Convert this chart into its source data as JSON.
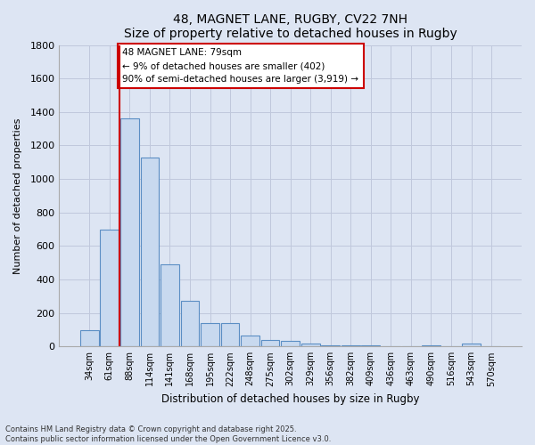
{
  "title1": "48, MAGNET LANE, RUGBY, CV22 7NH",
  "title2": "Size of property relative to detached houses in Rugby",
  "xlabel": "Distribution of detached houses by size in Rugby",
  "ylabel": "Number of detached properties",
  "categories": [
    "34sqm",
    "61sqm",
    "88sqm",
    "114sqm",
    "141sqm",
    "168sqm",
    "195sqm",
    "222sqm",
    "248sqm",
    "275sqm",
    "302sqm",
    "329sqm",
    "356sqm",
    "382sqm",
    "409sqm",
    "436sqm",
    "463sqm",
    "490sqm",
    "516sqm",
    "543sqm",
    "570sqm"
  ],
  "values": [
    95,
    700,
    1360,
    1130,
    490,
    270,
    140,
    140,
    65,
    40,
    35,
    15,
    5,
    5,
    5,
    0,
    0,
    5,
    0,
    20,
    0
  ],
  "bar_color": "#c8d9ef",
  "bar_edge_color": "#5b8ec4",
  "highlight_color": "#cc0000",
  "annotation_text": "48 MAGNET LANE: 79sqm\n← 9% of detached houses are smaller (402)\n90% of semi-detached houses are larger (3,919) →",
  "annotation_box_color": "#cc0000",
  "background_color": "#dde5f3",
  "plot_background": "#dde5f3",
  "ylim": [
    0,
    1800
  ],
  "yticks": [
    0,
    200,
    400,
    600,
    800,
    1000,
    1200,
    1400,
    1600,
    1800
  ],
  "grid_color": "#c0c8dc",
  "footer1": "Contains HM Land Registry data © Crown copyright and database right 2025.",
  "footer2": "Contains public sector information licensed under the Open Government Licence v3.0."
}
